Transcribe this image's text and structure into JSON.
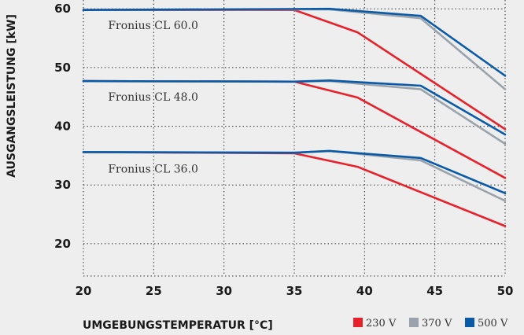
{
  "chart_data": {
    "type": "line",
    "xlabel": "UMGEBUNGSTEMPERATUR [°C]",
    "ylabel": "AUSGANGSLEISTUNG [kW]",
    "xlim": [
      20,
      50
    ],
    "ylim": [
      14.5,
      61.5
    ],
    "x_ticks": [
      20,
      25,
      30,
      35,
      40,
      45,
      50
    ],
    "y_ticks": [
      20,
      30,
      40,
      50,
      60
    ],
    "grid": true,
    "legend_position": "bottom-right",
    "legend": [
      {
        "label": "230 V",
        "color": "#e8202a"
      },
      {
        "label": "370 V",
        "color": "#9aa3ab"
      },
      {
        "label": "500 V",
        "color": "#0a5aa8"
      }
    ],
    "annotations": [
      {
        "text": "Fronius CL 60.0",
        "x": 25,
        "y": 57.2
      },
      {
        "text": "Fronius CL 48.0",
        "x": 25,
        "y": 45.0
      },
      {
        "text": "Fronius CL 36.0",
        "x": 25,
        "y": 32.8
      }
    ],
    "groups": [
      {
        "label": "Fronius CL 60.0",
        "series": [
          {
            "voltage": "230 V",
            "color": "#e8202a",
            "x": [
              20,
              35,
              39.5,
              50
            ],
            "y": [
              59.8,
              59.8,
              56.0,
              39.5
            ]
          },
          {
            "voltage": "370 V",
            "color": "#9aa3ab",
            "x": [
              20,
              37.5,
              44,
              50
            ],
            "y": [
              59.8,
              59.9,
              58.4,
              46.3
            ]
          },
          {
            "voltage": "500 V",
            "color": "#0a5aa8",
            "x": [
              20,
              37.5,
              44,
              50
            ],
            "y": [
              59.8,
              60.0,
              58.8,
              48.6
            ]
          }
        ]
      },
      {
        "label": "Fronius CL 48.0",
        "series": [
          {
            "voltage": "230 V",
            "color": "#e8202a",
            "x": [
              20,
              35,
              39.5,
              50
            ],
            "y": [
              47.7,
              47.6,
              44.9,
              31.2
            ]
          },
          {
            "voltage": "370 V",
            "color": "#9aa3ab",
            "x": [
              20,
              35,
              37.5,
              44,
              50
            ],
            "y": [
              47.7,
              47.6,
              47.7,
              46.3,
              37.0
            ]
          },
          {
            "voltage": "500 V",
            "color": "#0a5aa8",
            "x": [
              20,
              35,
              37.5,
              44,
              50
            ],
            "y": [
              47.7,
              47.6,
              47.8,
              46.9,
              38.6
            ]
          }
        ]
      },
      {
        "label": "Fronius CL 36.0",
        "series": [
          {
            "voltage": "230 V",
            "color": "#e8202a",
            "x": [
              20,
              35,
              39.5,
              50
            ],
            "y": [
              35.6,
              35.4,
              33.1,
              23.0
            ]
          },
          {
            "voltage": "370 V",
            "color": "#9aa3ab",
            "x": [
              20,
              35,
              37.5,
              44,
              50
            ],
            "y": [
              35.6,
              35.5,
              35.8,
              34.2,
              27.3
            ]
          },
          {
            "voltage": "500 V",
            "color": "#0a5aa8",
            "x": [
              20,
              35,
              37.5,
              44,
              50
            ],
            "y": [
              35.6,
              35.5,
              35.8,
              34.6,
              28.6
            ]
          }
        ]
      }
    ]
  }
}
